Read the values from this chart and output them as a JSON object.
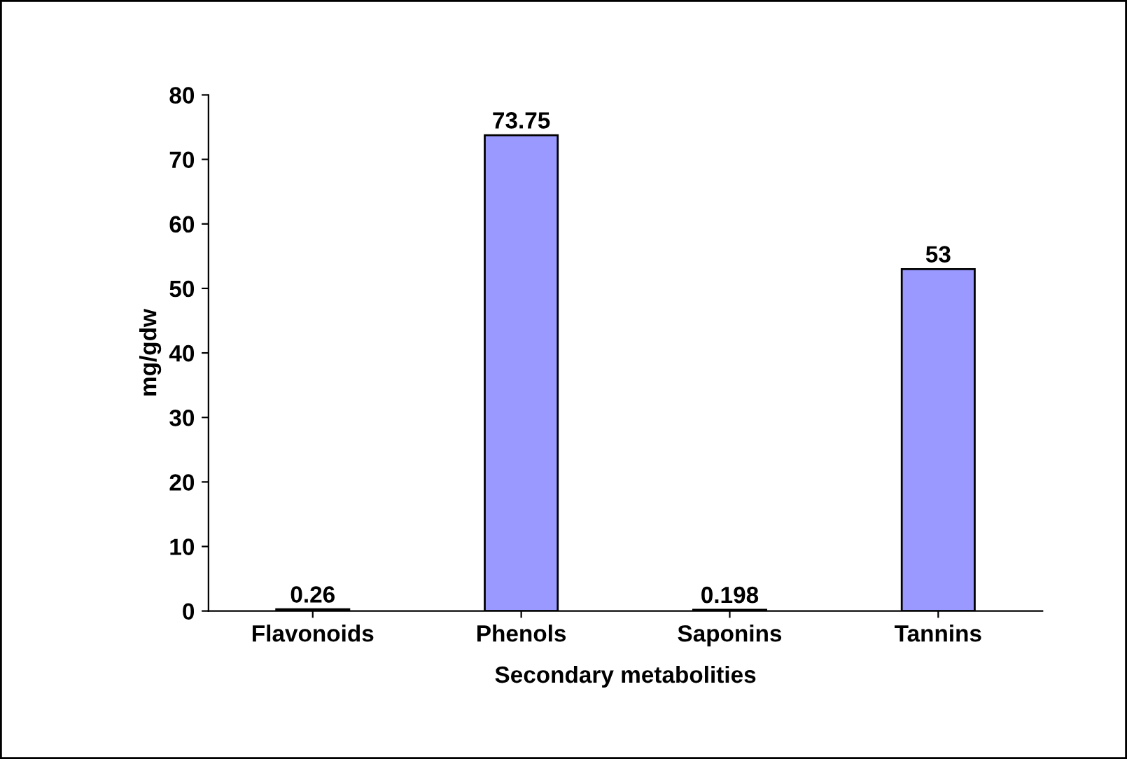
{
  "chart_data": {
    "type": "bar",
    "xlabel": "Secondary metabolities",
    "ylabel": "mg/gdw",
    "categories": [
      "Flavonoids",
      "Phenols",
      "Saponins",
      "Tannins"
    ],
    "values": [
      0.26,
      73.75,
      0.198,
      53
    ],
    "color": "#9999ff",
    "ylim": [
      0,
      80
    ],
    "yticks": [
      0,
      10,
      20,
      30,
      40,
      50,
      60,
      70,
      80
    ],
    "grid": false,
    "data_labels": true
  }
}
